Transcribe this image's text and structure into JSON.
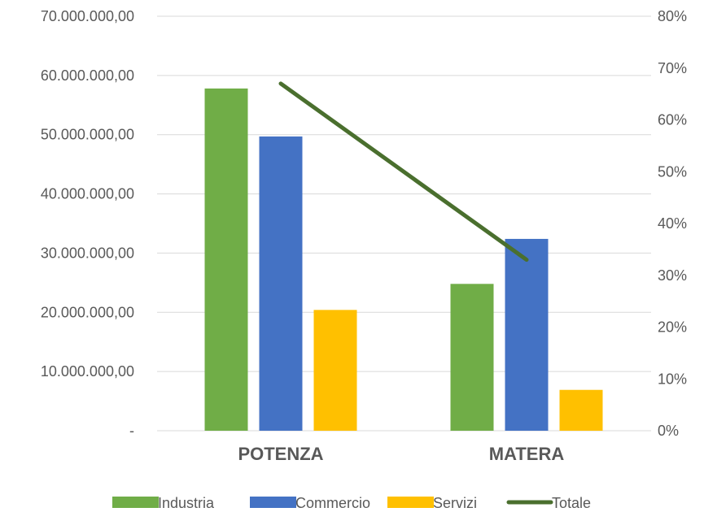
{
  "chart_data": {
    "type": "bar",
    "categories": [
      "POTENZA",
      "MATERA"
    ],
    "series": [
      {
        "name": "Industria",
        "type": "bar",
        "axis": "left",
        "color": "#70AD47",
        "values": [
          57800000,
          24800000
        ]
      },
      {
        "name": "Commercio",
        "type": "bar",
        "axis": "left",
        "color": "#4472C4",
        "values": [
          49700000,
          32400000
        ]
      },
      {
        "name": "Servizi",
        "type": "bar",
        "axis": "left",
        "color": "#FFC000",
        "values": [
          20400000,
          6900000
        ]
      },
      {
        "name": "Totale",
        "type": "line",
        "axis": "right",
        "color": "#4A6F2E",
        "values": [
          0.67,
          0.33
        ]
      }
    ],
    "y_left": {
      "ylim": [
        0,
        70000000
      ],
      "ticks": [
        0,
        10000000,
        20000000,
        30000000,
        40000000,
        50000000,
        60000000,
        70000000
      ],
      "tick_labels": [
        "-",
        "10.000.000,00",
        "20.000.000,00",
        "30.000.000,00",
        "40.000.000,00",
        "50.000.000,00",
        "60.000.000,00",
        "70.000.000,00"
      ]
    },
    "y_right": {
      "ylim": [
        0,
        0.8
      ],
      "ticks": [
        0,
        0.1,
        0.2,
        0.3,
        0.4,
        0.5,
        0.6,
        0.7,
        0.8
      ],
      "tick_labels": [
        "0%",
        "10%",
        "20%",
        "30%",
        "40%",
        "50%",
        "60%",
        "70%",
        "80%"
      ]
    },
    "grid": true,
    "gridline_color": "#D9D9D9",
    "legend": "bottom",
    "title": "",
    "xlabel": "",
    "ylabel": ""
  }
}
